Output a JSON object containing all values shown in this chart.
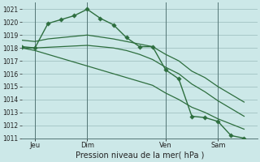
{
  "background_color": "#cce8e8",
  "grid_color": "#99bbbb",
  "line_color": "#2d6e3e",
  "xlabel": "Pression niveau de la mer( hPa )",
  "ylim": [
    1011,
    1021.5
  ],
  "yticks": [
    1011,
    1012,
    1013,
    1014,
    1015,
    1016,
    1017,
    1018,
    1019,
    1020,
    1021
  ],
  "xlim": [
    0,
    18
  ],
  "day_labels": [
    "Jeu",
    "Dim",
    "Ven",
    "Sam"
  ],
  "day_positions": [
    1,
    5,
    11,
    15
  ],
  "day_vlines": [
    1,
    5,
    11,
    15
  ],
  "series": [
    {
      "x": [
        0,
        1,
        2,
        3,
        4,
        5,
        6,
        7,
        8,
        9,
        10,
        11,
        12,
        13,
        14,
        15,
        16,
        17
      ],
      "y": [
        1018.1,
        1018.0,
        1019.9,
        1020.2,
        1020.5,
        1021.0,
        1020.3,
        1019.8,
        1018.8,
        1018.1,
        1018.1,
        1016.3,
        1015.6,
        1012.7,
        1012.6,
        1012.3,
        1011.2,
        1011.0
      ],
      "has_markers": true,
      "linewidth": 1.0,
      "markersize": 2.8
    },
    {
      "x": [
        0,
        1,
        2,
        3,
        4,
        5,
        6,
        7,
        8,
        9,
        10,
        11,
        12,
        13,
        14,
        15,
        16,
        17
      ],
      "y": [
        1018.6,
        1018.5,
        1018.7,
        1018.8,
        1018.9,
        1019.0,
        1018.85,
        1018.7,
        1018.5,
        1018.3,
        1018.1,
        1017.5,
        1017.0,
        1016.2,
        1015.7,
        1015.0,
        1014.4,
        1013.8
      ],
      "has_markers": false,
      "linewidth": 0.9
    },
    {
      "x": [
        0,
        1,
        2,
        3,
        4,
        5,
        6,
        7,
        8,
        9,
        10,
        11,
        12,
        13,
        14,
        15,
        16,
        17
      ],
      "y": [
        1018.0,
        1018.0,
        1018.05,
        1018.1,
        1018.15,
        1018.2,
        1018.1,
        1018.0,
        1017.8,
        1017.5,
        1017.1,
        1016.5,
        1016.0,
        1015.2,
        1014.6,
        1013.9,
        1013.3,
        1012.7
      ],
      "has_markers": false,
      "linewidth": 0.9
    },
    {
      "x": [
        0,
        1,
        2,
        3,
        4,
        5,
        6,
        7,
        8,
        9,
        10,
        11,
        12,
        13,
        14,
        15,
        16,
        17
      ],
      "y": [
        1018.0,
        1017.8,
        1017.5,
        1017.2,
        1016.9,
        1016.6,
        1016.3,
        1016.0,
        1015.7,
        1015.4,
        1015.1,
        1014.5,
        1014.0,
        1013.4,
        1013.0,
        1012.5,
        1012.1,
        1011.7
      ],
      "has_markers": false,
      "linewidth": 0.9
    }
  ]
}
